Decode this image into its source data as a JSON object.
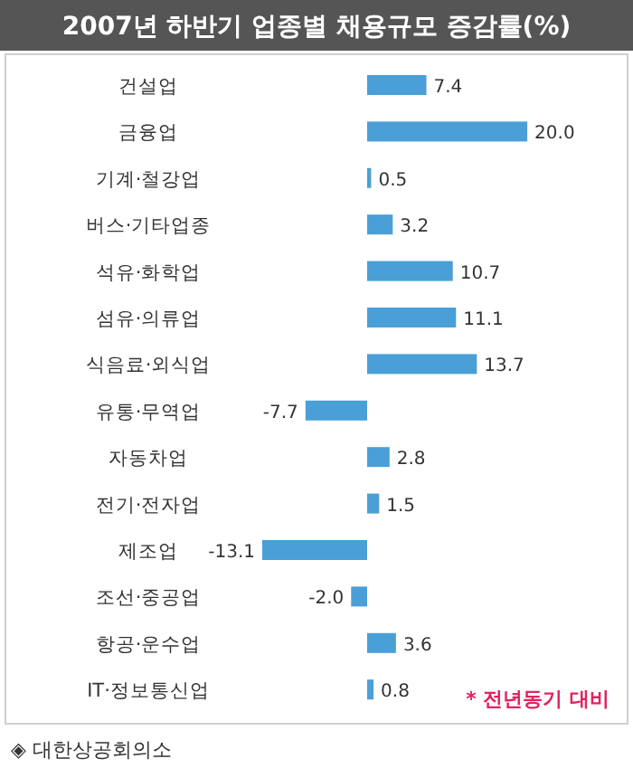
{
  "chart_data": {
    "type": "bar",
    "orientation": "horizontal",
    "title": "2007년 하반기 업종별 채용규모 증감률(%)",
    "categories": [
      "건설업",
      "금융업",
      "기계·철강업",
      "버스·기타업종",
      "석유·화학업",
      "섬유·의류업",
      "식음료·외식업",
      "유통·무역업",
      "자동차업",
      "전기·전자업",
      "제조업",
      "조선·중공업",
      "항공·운수업",
      "IT·정보통신업"
    ],
    "values": [
      7.4,
      20.0,
      0.5,
      3.2,
      10.7,
      11.1,
      13.7,
      -7.7,
      2.8,
      1.5,
      -13.1,
      -2.0,
      3.6,
      0.8
    ],
    "value_labels": [
      "7.4",
      "20.0",
      "0.5",
      "3.2",
      "10.7",
      "11.1",
      "13.7",
      "-7.7",
      "2.8",
      "1.5",
      "-13.1",
      "-2.0",
      "3.6",
      "0.8"
    ],
    "color": "#4a9fd6",
    "annotations": [
      "* 전년동기 대비",
      "◈ 대한상공회의소"
    ]
  }
}
